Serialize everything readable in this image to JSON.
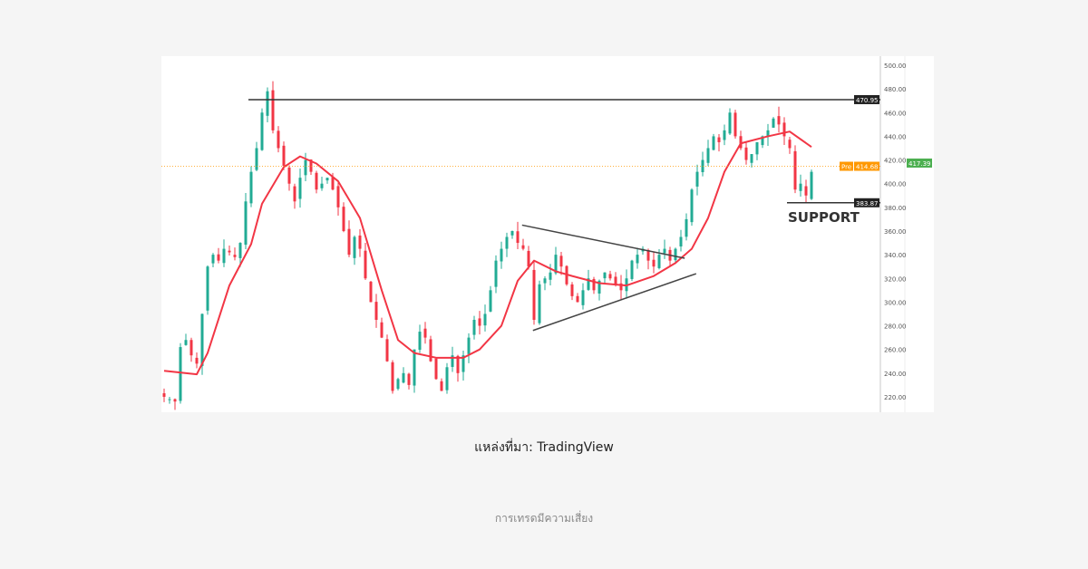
{
  "chart_data": {
    "type": "candlestick",
    "ylim": [
      210,
      505
    ],
    "yticks": [
      220,
      240,
      260,
      280,
      300,
      320,
      340,
      360,
      380,
      400,
      420,
      440,
      460,
      480,
      500
    ],
    "ytick_labels": [
      "220.00",
      "240.00",
      "260.00",
      "280.00",
      "300.00",
      "320.00",
      "340.00",
      "360.00",
      "380.00",
      "400.00",
      "420.00",
      "440.00",
      "460.00",
      "480.00",
      "500.00"
    ],
    "closes": [
      220,
      218,
      216,
      262,
      268,
      255,
      248,
      290,
      330,
      340,
      335,
      345,
      342,
      338,
      350,
      385,
      410,
      430,
      460,
      478,
      445,
      430,
      415,
      400,
      385,
      405,
      420,
      410,
      395,
      400,
      405,
      395,
      380,
      360,
      340,
      355,
      345,
      320,
      300,
      285,
      270,
      250,
      225,
      235,
      240,
      230,
      260,
      275,
      270,
      250,
      235,
      225,
      245,
      255,
      240,
      255,
      270,
      285,
      280,
      290,
      310,
      335,
      345,
      355,
      360,
      350,
      345,
      330,
      285,
      315,
      320,
      325,
      340,
      330,
      315,
      305,
      300,
      310,
      320,
      310,
      318,
      325,
      320,
      315,
      310,
      320,
      335,
      340,
      345,
      335,
      330,
      340,
      345,
      335,
      345,
      355,
      370,
      395,
      410,
      420,
      430,
      440,
      435,
      445,
      460,
      440,
      430,
      420,
      425,
      435,
      440,
      445,
      455,
      450,
      440,
      430,
      395,
      400,
      390,
      410
    ],
    "moving_average": [
      [
        0,
        242
      ],
      [
        6,
        239
      ],
      [
        8,
        257
      ],
      [
        12,
        314
      ],
      [
        16,
        349
      ],
      [
        18,
        383
      ],
      [
        22,
        414
      ],
      [
        25,
        423
      ],
      [
        28,
        417
      ],
      [
        32,
        402
      ],
      [
        36,
        371
      ],
      [
        40,
        310
      ],
      [
        43,
        268
      ],
      [
        46,
        257
      ],
      [
        50,
        253
      ],
      [
        55,
        253
      ],
      [
        58,
        260
      ],
      [
        62,
        280
      ],
      [
        65,
        318
      ],
      [
        68,
        335
      ],
      [
        72,
        326
      ],
      [
        75,
        322
      ],
      [
        80,
        316
      ],
      [
        85,
        314
      ],
      [
        90,
        322
      ],
      [
        94,
        333
      ],
      [
        97,
        345
      ],
      [
        100,
        371
      ],
      [
        103,
        410
      ],
      [
        106,
        434
      ],
      [
        111,
        440
      ],
      [
        115,
        444
      ],
      [
        119,
        431
      ]
    ],
    "resistance": {
      "value": 470.95,
      "label": "470.95",
      "from_index": 16
    },
    "support": {
      "value": 383.87,
      "label": "383.87",
      "from_index": 115,
      "annotation": "SUPPORT"
    },
    "triangle": {
      "upper": [
        [
          65.8,
          365
        ],
        [
          95.7,
          337
        ]
      ],
      "lower": [
        [
          67.8,
          276
        ],
        [
          97.8,
          324
        ]
      ]
    },
    "pre_market": {
      "tag": "Pre",
      "value": 414.68,
      "label": "414.68"
    },
    "last_price": {
      "value": 417.39,
      "label": "417.39"
    },
    "colors": {
      "up": "#22ab94",
      "down": "#f23645",
      "ma": "#f23645",
      "pre": "#ff9800",
      "last": "#4caf50",
      "line": "#333333"
    }
  },
  "caption": "แหล่งที่มา: TradingView",
  "footer": "การเทรดมีความเสี่ยง"
}
